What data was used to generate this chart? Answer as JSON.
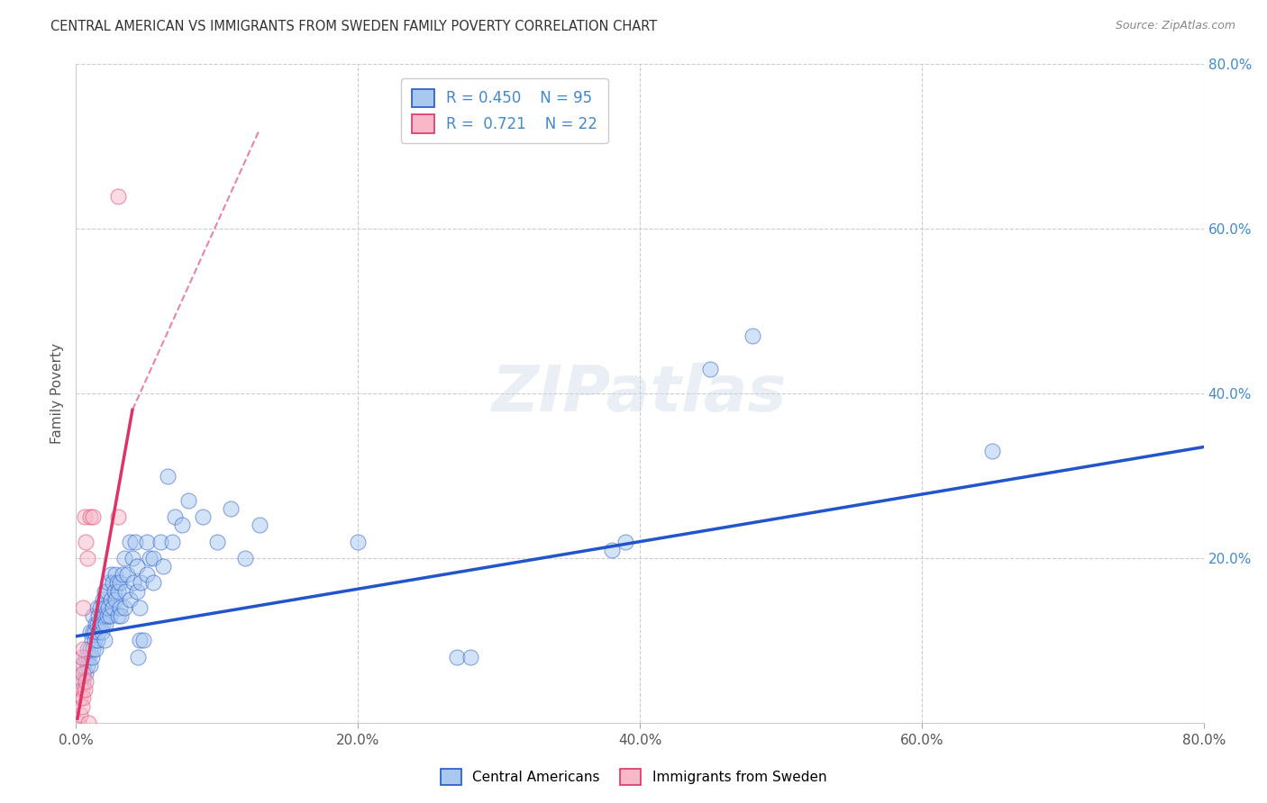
{
  "title": "CENTRAL AMERICAN VS IMMIGRANTS FROM SWEDEN FAMILY POVERTY CORRELATION CHART",
  "source": "Source: ZipAtlas.com",
  "ylabel": "Family Poverty",
  "xlim": [
    0,
    0.8
  ],
  "ylim": [
    0,
    0.8
  ],
  "xtick_labels": [
    "0.0%",
    "20.0%",
    "40.0%",
    "60.0%",
    "80.0%"
  ],
  "xtick_vals": [
    0,
    0.2,
    0.4,
    0.6,
    0.8
  ],
  "ytick_vals": [
    0.2,
    0.4,
    0.6,
    0.8
  ],
  "right_ytick_labels": [
    "20.0%",
    "40.0%",
    "60.0%",
    "80.0%"
  ],
  "right_ytick_vals": [
    0.2,
    0.4,
    0.6,
    0.8
  ],
  "blue_color": "#a8c8f0",
  "pink_color": "#f8b8c8",
  "blue_line_color": "#2255cc",
  "pink_line_color": "#dd3366",
  "blue_R": 0.45,
  "blue_N": 95,
  "pink_R": 0.721,
  "pink_N": 22,
  "blue_scatter": [
    [
      0.005,
      0.05
    ],
    [
      0.005,
      0.07
    ],
    [
      0.007,
      0.06
    ],
    [
      0.007,
      0.08
    ],
    [
      0.008,
      0.07
    ],
    [
      0.008,
      0.09
    ],
    [
      0.009,
      0.08
    ],
    [
      0.01,
      0.07
    ],
    [
      0.01,
      0.09
    ],
    [
      0.01,
      0.11
    ],
    [
      0.011,
      0.08
    ],
    [
      0.011,
      0.1
    ],
    [
      0.012,
      0.09
    ],
    [
      0.012,
      0.11
    ],
    [
      0.012,
      0.13
    ],
    [
      0.013,
      0.1
    ],
    [
      0.013,
      0.11
    ],
    [
      0.014,
      0.09
    ],
    [
      0.014,
      0.12
    ],
    [
      0.015,
      0.1
    ],
    [
      0.015,
      0.12
    ],
    [
      0.015,
      0.14
    ],
    [
      0.016,
      0.11
    ],
    [
      0.016,
      0.13
    ],
    [
      0.017,
      0.12
    ],
    [
      0.017,
      0.14
    ],
    [
      0.018,
      0.11
    ],
    [
      0.018,
      0.13
    ],
    [
      0.019,
      0.12
    ],
    [
      0.019,
      0.15
    ],
    [
      0.02,
      0.1
    ],
    [
      0.02,
      0.13
    ],
    [
      0.02,
      0.16
    ],
    [
      0.021,
      0.12
    ],
    [
      0.021,
      0.14
    ],
    [
      0.022,
      0.13
    ],
    [
      0.022,
      0.16
    ],
    [
      0.023,
      0.14
    ],
    [
      0.023,
      0.17
    ],
    [
      0.024,
      0.13
    ],
    [
      0.025,
      0.15
    ],
    [
      0.025,
      0.18
    ],
    [
      0.026,
      0.14
    ],
    [
      0.026,
      0.17
    ],
    [
      0.027,
      0.16
    ],
    [
      0.028,
      0.15
    ],
    [
      0.028,
      0.18
    ],
    [
      0.029,
      0.17
    ],
    [
      0.03,
      0.13
    ],
    [
      0.03,
      0.16
    ],
    [
      0.031,
      0.14
    ],
    [
      0.031,
      0.17
    ],
    [
      0.032,
      0.13
    ],
    [
      0.033,
      0.18
    ],
    [
      0.034,
      0.14
    ],
    [
      0.034,
      0.2
    ],
    [
      0.035,
      0.16
    ],
    [
      0.036,
      0.18
    ],
    [
      0.038,
      0.15
    ],
    [
      0.038,
      0.22
    ],
    [
      0.04,
      0.2
    ],
    [
      0.041,
      0.17
    ],
    [
      0.042,
      0.22
    ],
    [
      0.043,
      0.16
    ],
    [
      0.043,
      0.19
    ],
    [
      0.044,
      0.08
    ],
    [
      0.045,
      0.14
    ],
    [
      0.045,
      0.1
    ],
    [
      0.046,
      0.17
    ],
    [
      0.048,
      0.1
    ],
    [
      0.05,
      0.18
    ],
    [
      0.05,
      0.22
    ],
    [
      0.052,
      0.2
    ],
    [
      0.055,
      0.17
    ],
    [
      0.055,
      0.2
    ],
    [
      0.06,
      0.22
    ],
    [
      0.062,
      0.19
    ],
    [
      0.065,
      0.3
    ],
    [
      0.068,
      0.22
    ],
    [
      0.07,
      0.25
    ],
    [
      0.075,
      0.24
    ],
    [
      0.08,
      0.27
    ],
    [
      0.09,
      0.25
    ],
    [
      0.1,
      0.22
    ],
    [
      0.11,
      0.26
    ],
    [
      0.12,
      0.2
    ],
    [
      0.13,
      0.24
    ],
    [
      0.2,
      0.22
    ],
    [
      0.27,
      0.08
    ],
    [
      0.28,
      0.08
    ],
    [
      0.38,
      0.21
    ],
    [
      0.39,
      0.22
    ],
    [
      0.45,
      0.43
    ],
    [
      0.48,
      0.47
    ],
    [
      0.65,
      0.33
    ]
  ],
  "pink_scatter": [
    [
      0.002,
      0.0
    ],
    [
      0.003,
      0.01
    ],
    [
      0.003,
      0.03
    ],
    [
      0.003,
      0.05
    ],
    [
      0.003,
      0.07
    ],
    [
      0.004,
      0.02
    ],
    [
      0.004,
      0.04
    ],
    [
      0.004,
      0.08
    ],
    [
      0.005,
      0.03
    ],
    [
      0.005,
      0.06
    ],
    [
      0.005,
      0.09
    ],
    [
      0.005,
      0.14
    ],
    [
      0.006,
      0.04
    ],
    [
      0.006,
      0.25
    ],
    [
      0.007,
      0.05
    ],
    [
      0.007,
      0.22
    ],
    [
      0.008,
      0.2
    ],
    [
      0.009,
      0.0
    ],
    [
      0.01,
      0.25
    ],
    [
      0.012,
      0.25
    ],
    [
      0.03,
      0.25
    ],
    [
      0.03,
      0.64
    ]
  ],
  "blue_line": [
    [
      0.0,
      0.105
    ],
    [
      0.8,
      0.335
    ]
  ],
  "pink_line_solid": [
    [
      0.001,
      0.005
    ],
    [
      0.04,
      0.38
    ]
  ],
  "pink_line_dash": [
    [
      0.04,
      0.38
    ],
    [
      0.13,
      0.72
    ]
  ],
  "watermark": "ZIPatlas",
  "background_color": "#ffffff",
  "grid_color": "#cccccc",
  "title_fontsize": 10.5,
  "axis_label_color": "#555555",
  "tick_color_right": "#4488cc",
  "legend_text_color": "#4488cc"
}
